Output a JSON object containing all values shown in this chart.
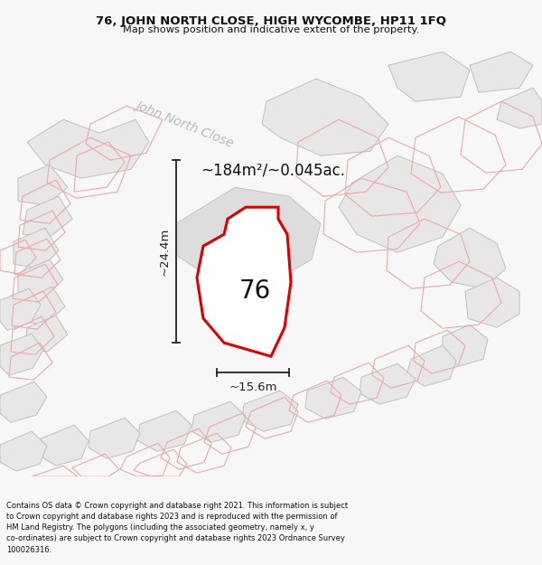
{
  "title_line1": "76, JOHN NORTH CLOSE, HIGH WYCOMBE, HP11 1FQ",
  "title_line2": "Map shows position and indicative extent of the property.",
  "footer_text": "Contains OS data © Crown copyright and database right 2021. This information is subject to Crown copyright and database rights 2023 and is reproduced with the permission of HM Land Registry. The polygons (including the associated geometry, namely x, y co-ordinates) are subject to Crown copyright and database rights 2023 Ordnance Survey 100026316.",
  "area_label": "~184m²/~0.045ac.",
  "number_label": "76",
  "width_label": "~15.6m",
  "height_label": "~24.4m",
  "bg_color": "#f7f7f7",
  "map_bg": "#f2f0f0",
  "building_fill": "#e8e6e6",
  "building_edge": "#c0bebe",
  "lot_edge": "#e8aaaa",
  "property_fill": "#ffffff",
  "property_edge": "#dd0000",
  "road_label": "John North Close",
  "road_label_color": "#bbbbbb",
  "dim_color": "#222222",
  "text_color": "#111111"
}
